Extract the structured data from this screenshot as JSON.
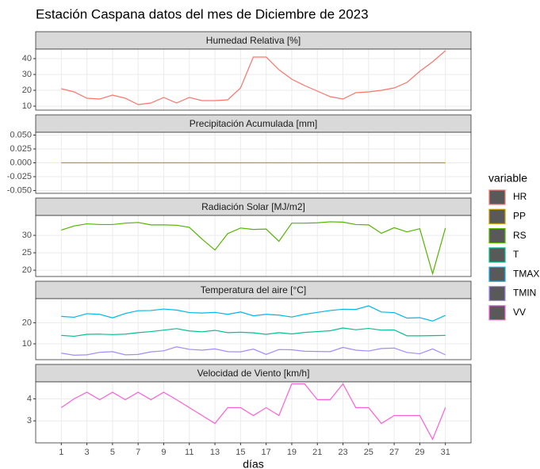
{
  "title": "Estación Caspana datos del mes de Diciembre de 2023",
  "legend_title": "variable",
  "chart_data": [
    {
      "type": "line",
      "title": "Humedad Relativa [%]",
      "x": [
        1,
        2,
        3,
        4,
        5,
        6,
        7,
        8,
        9,
        10,
        11,
        12,
        13,
        14,
        15,
        16,
        17,
        18,
        19,
        20,
        21,
        22,
        23,
        24,
        25,
        26,
        27,
        28,
        29,
        30,
        31
      ],
      "ylim": [
        7.5,
        46
      ],
      "yticks": [
        10,
        20,
        30,
        40
      ],
      "grid": true,
      "series": [
        {
          "name": "HR",
          "color": "#F8766D",
          "values": [
            21,
            19,
            15,
            14.5,
            17,
            15,
            11,
            12,
            15.5,
            12,
            15.5,
            13.5,
            13.5,
            14,
            21.5,
            41,
            41,
            33,
            27,
            23,
            19.5,
            16,
            14.5,
            18.5,
            19,
            20,
            21.5,
            25,
            32,
            38,
            45
          ]
        }
      ]
    },
    {
      "type": "line",
      "title": "Precipitación Acumulada [mm]",
      "x": [
        1,
        2,
        3,
        4,
        5,
        6,
        7,
        8,
        9,
        10,
        11,
        12,
        13,
        14,
        15,
        16,
        17,
        18,
        19,
        20,
        21,
        22,
        23,
        24,
        25,
        26,
        27,
        28,
        29,
        30,
        31
      ],
      "ylim": [
        -0.055,
        0.055
      ],
      "yticks": [
        {
          "value": -0.05,
          "label": "-0.050"
        },
        {
          "value": -0.025,
          "label": "-0.025"
        },
        {
          "value": 0,
          "label": "0.000"
        },
        {
          "value": 0.025,
          "label": "0.025"
        },
        {
          "value": 0.05,
          "label": "0.050"
        }
      ],
      "grid": true,
      "series": [
        {
          "name": "PP",
          "color": "#C49A00",
          "values": [
            0,
            0,
            0,
            0,
            0,
            0,
            0,
            0,
            0,
            0,
            0,
            0,
            0,
            0,
            0,
            0,
            0,
            0,
            0,
            0,
            0,
            0,
            0,
            0,
            0,
            0,
            0,
            0,
            0,
            0,
            0
          ]
        }
      ]
    },
    {
      "type": "line",
      "title": "Radiación Solar [MJ/m2]",
      "x": [
        1,
        2,
        3,
        4,
        5,
        6,
        7,
        8,
        9,
        10,
        11,
        12,
        13,
        14,
        15,
        16,
        17,
        18,
        19,
        20,
        21,
        22,
        23,
        24,
        25,
        26,
        27,
        28,
        29,
        30,
        31
      ],
      "ylim": [
        18.2,
        35.7
      ],
      "yticks": [
        20,
        25,
        30
      ],
      "grid": true,
      "series": [
        {
          "name": "RS",
          "color": "#53B400",
          "values": [
            31.5,
            32.7,
            33.3,
            33.1,
            33.1,
            33.5,
            33.7,
            33,
            33,
            32.9,
            32.3,
            28.9,
            25.8,
            30.5,
            32.1,
            31.7,
            31.8,
            28.3,
            33.5,
            33.5,
            33.6,
            33.9,
            33.8,
            33.1,
            33,
            30.6,
            32.2,
            31,
            31.9,
            19,
            32.1
          ]
        }
      ]
    },
    {
      "type": "line",
      "title": "Temperatura del aire [°C]",
      "x": [
        1,
        2,
        3,
        4,
        5,
        6,
        7,
        8,
        9,
        10,
        11,
        12,
        13,
        14,
        15,
        16,
        17,
        18,
        19,
        20,
        21,
        22,
        23,
        24,
        25,
        26,
        27,
        28,
        29,
        30,
        31
      ],
      "ylim": [
        2.5,
        31.4
      ],
      "yticks": [
        10,
        20
      ],
      "grid": true,
      "series": [
        {
          "name": "T",
          "color": "#00C094",
          "values": [
            14,
            13.6,
            14.5,
            14.6,
            14.4,
            14.6,
            15.3,
            15.8,
            16.5,
            17.2,
            16.1,
            15.7,
            16.4,
            15.3,
            15.5,
            15.2,
            14.5,
            15.3,
            14.7,
            15.4,
            15.8,
            16.2,
            17.5,
            16.7,
            17.3,
            16.5,
            16.6,
            13.8,
            13.8,
            13.9,
            14
          ]
        },
        {
          "name": "TMAX",
          "color": "#00B6EB",
          "values": [
            23,
            22.6,
            24.3,
            24,
            22.3,
            24.4,
            25.7,
            25.8,
            26.5,
            26,
            24.8,
            24.6,
            24.9,
            24,
            25.1,
            23.3,
            24,
            23.6,
            22.7,
            24,
            24.9,
            25.8,
            26.4,
            26.3,
            28,
            25.1,
            24.8,
            22.2,
            22.4,
            20.8,
            23.5
          ]
        },
        {
          "name": "TMIN",
          "color": "#A58AFF",
          "values": [
            5.6,
            4.6,
            4.8,
            6,
            6.3,
            4.8,
            5,
            6.2,
            6.7,
            8.6,
            7.4,
            7,
            7.6,
            6.3,
            6.2,
            7.5,
            5,
            7.3,
            7.2,
            6.5,
            6.4,
            6.3,
            8.3,
            7,
            6.6,
            7.8,
            8,
            5.9,
            5.3,
            7.6,
            4.8
          ]
        }
      ]
    },
    {
      "type": "line",
      "title": "Velocidad de Viento [km/h]",
      "x": [
        1,
        2,
        3,
        4,
        5,
        6,
        7,
        8,
        9,
        10,
        11,
        12,
        13,
        14,
        15,
        16,
        17,
        18,
        19,
        20,
        21,
        22,
        23,
        24,
        25,
        26,
        27,
        28,
        29,
        30,
        31
      ],
      "ylim": [
        2,
        4.77
      ],
      "yticks": [
        3,
        4
      ],
      "grid": true,
      "xlim": [
        -1,
        33
      ],
      "xticks": [
        1,
        3,
        5,
        7,
        9,
        11,
        13,
        15,
        17,
        19,
        21,
        23,
        25,
        27,
        29,
        31
      ],
      "xlabel": "días",
      "series": [
        {
          "name": "VV",
          "color": "#FB61D7",
          "values": [
            3.6,
            4,
            4.3,
            3.96,
            4.3,
            3.96,
            4.3,
            3.96,
            4.3,
            3.96,
            3.6,
            3.24,
            2.88,
            3.6,
            3.6,
            3.24,
            3.6,
            3.24,
            4.68,
            4.68,
            3.96,
            3.96,
            4.68,
            3.6,
            3.6,
            2.88,
            3.24,
            3.24,
            3.24,
            2.16,
            3.6
          ]
        }
      ]
    }
  ]
}
